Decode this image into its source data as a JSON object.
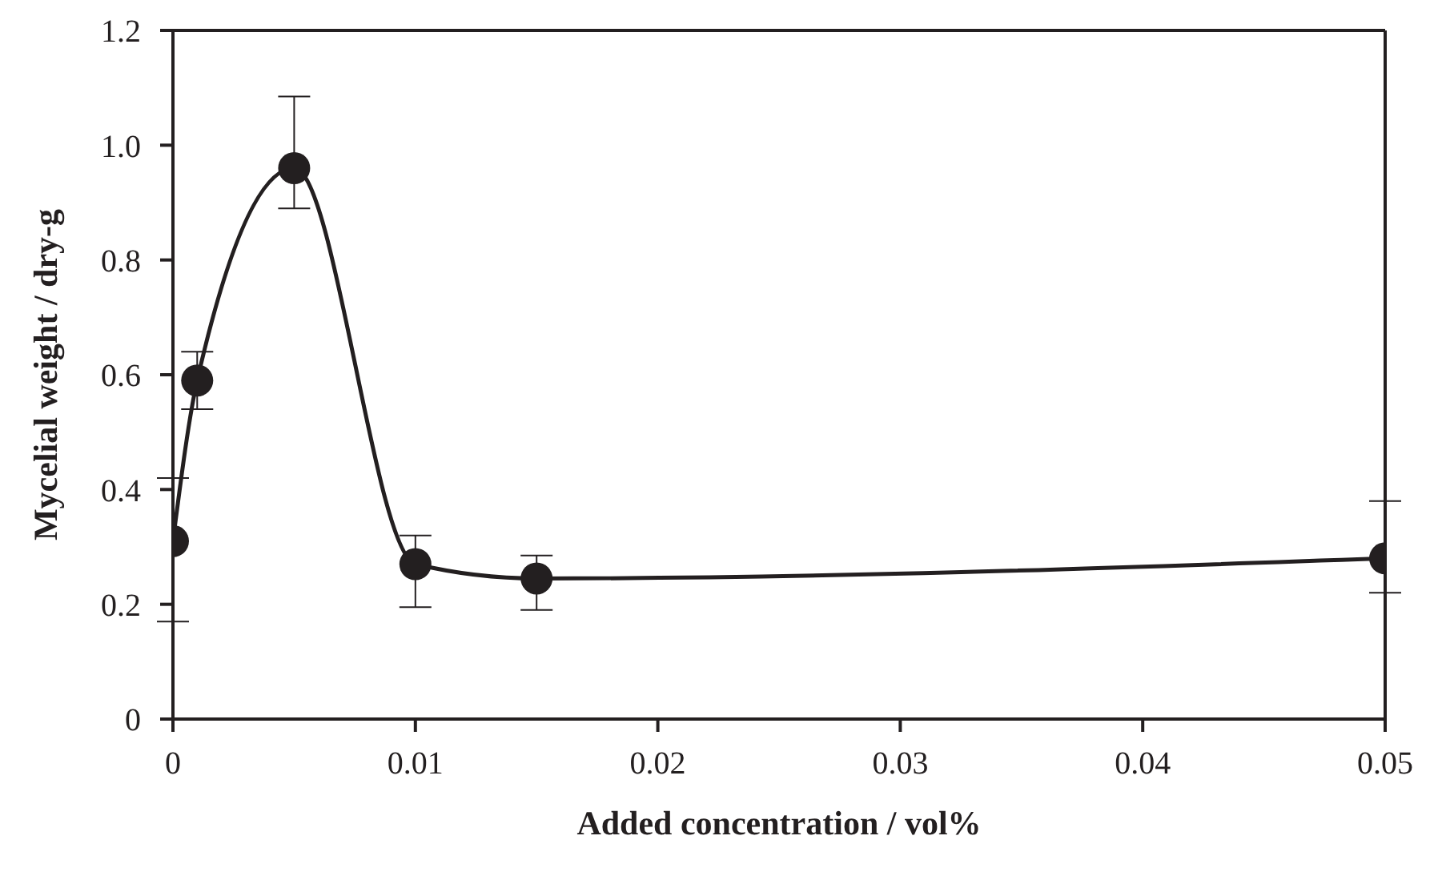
{
  "chart_data": {
    "type": "line",
    "xlabel": "Added concentration / vol%",
    "ylabel": "Mycelial weight / dry-g",
    "x": [
      0,
      0.001,
      0.005,
      0.01,
      0.015,
      0.05
    ],
    "series": [
      {
        "color": "#231f20",
        "values": [
          0.31,
          0.59,
          0.96,
          0.27,
          0.245,
          0.28
        ],
        "errors": [
          [
            0.17,
            0.42
          ],
          [
            0.54,
            0.64
          ],
          [
            0.89,
            1.085
          ],
          [
            0.195,
            0.32
          ],
          [
            0.19,
            0.285
          ],
          [
            0.22,
            0.38
          ]
        ]
      }
    ],
    "xlim": [
      0,
      0.05
    ],
    "xticks": [
      0,
      0.01,
      0.02,
      0.03,
      0.04,
      0.05
    ],
    "ylim": [
      0,
      1.2
    ],
    "yticks": [
      0,
      0.2,
      0.4,
      0.6,
      0.8,
      {
        "value": 1,
        "label": "1.0"
      },
      1.2
    ],
    "marker": "circle",
    "line_style": "solid",
    "grid": false
  }
}
